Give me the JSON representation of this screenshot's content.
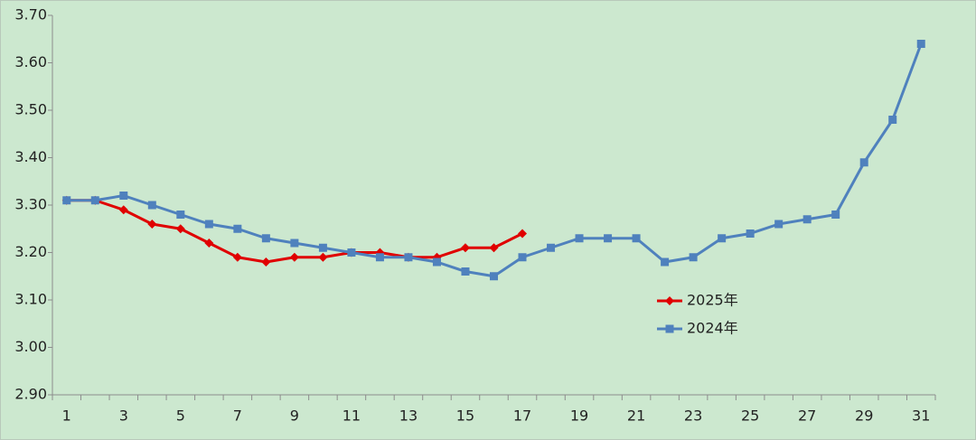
{
  "chart_data": {
    "type": "line",
    "categories": [
      1,
      null,
      3,
      null,
      5,
      null,
      7,
      null,
      9,
      null,
      11,
      null,
      13,
      null,
      15,
      null,
      17,
      null,
      19,
      null,
      21,
      null,
      23,
      null,
      25,
      null,
      27,
      null,
      29,
      null,
      31
    ],
    "series": [
      {
        "name": "2025年",
        "color": "#e00000",
        "marker": "diamond",
        "values": [
          3.31,
          3.31,
          3.29,
          3.26,
          3.25,
          3.22,
          3.19,
          3.18,
          3.19,
          3.19,
          3.2,
          3.2,
          3.19,
          3.19,
          3.21,
          3.21,
          3.24,
          null,
          null,
          null,
          null,
          null,
          null,
          null,
          null,
          null,
          null,
          null,
          null,
          null,
          null
        ]
      },
      {
        "name": "2024年",
        "color": "#4f81bd",
        "marker": "square",
        "values": [
          3.31,
          3.31,
          3.32,
          3.3,
          3.28,
          3.26,
          3.25,
          3.23,
          3.22,
          3.21,
          3.2,
          3.19,
          3.19,
          3.18,
          3.16,
          3.15,
          3.19,
          3.21,
          3.23,
          3.23,
          3.23,
          3.18,
          3.19,
          3.23,
          3.24,
          3.26,
          3.27,
          3.28,
          3.39,
          3.48,
          3.64
        ]
      }
    ],
    "ylim": [
      2.9,
      3.7
    ],
    "yticks": [
      {
        "value": 2.9,
        "label": "2.90"
      },
      {
        "value": 3.0,
        "label": "3.00"
      },
      {
        "value": 3.1,
        "label": "3.10"
      },
      {
        "value": 3.2,
        "label": "3.20"
      },
      {
        "value": 3.3,
        "label": "3.30"
      },
      {
        "value": 3.4,
        "label": "3.40"
      },
      {
        "value": 3.5,
        "label": "3.50"
      },
      {
        "value": 3.6,
        "label": "3.60"
      },
      {
        "value": 3.7,
        "label": "3.70"
      }
    ],
    "grid": false
  }
}
